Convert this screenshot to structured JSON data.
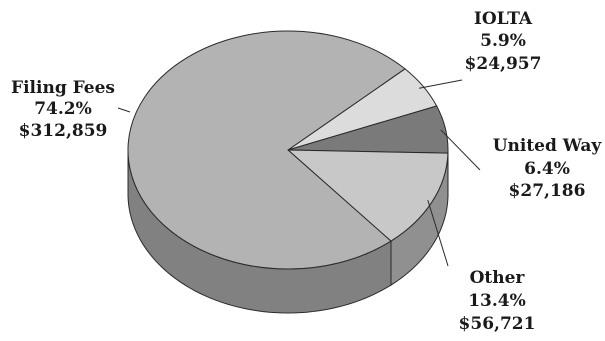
{
  "chart_data": {
    "type": "pie",
    "style": "3d",
    "title": "",
    "slices": [
      {
        "label": "Filing Fees",
        "percent": "74.2%",
        "amount": "$312,859",
        "value": 312859,
        "color": "#b3b3b3"
      },
      {
        "label": "IOLTA",
        "percent": "5.9%",
        "amount": "$24,957",
        "value": 24957,
        "color": "#dcdcdc"
      },
      {
        "label": "United Way",
        "percent": "6.4%",
        "amount": "$27,186",
        "value": 27186,
        "color": "#7a7a7a"
      },
      {
        "label": "Other",
        "percent": "13.4%",
        "amount": "$56,721",
        "value": 56721,
        "color": "#c8c8c8"
      }
    ]
  }
}
